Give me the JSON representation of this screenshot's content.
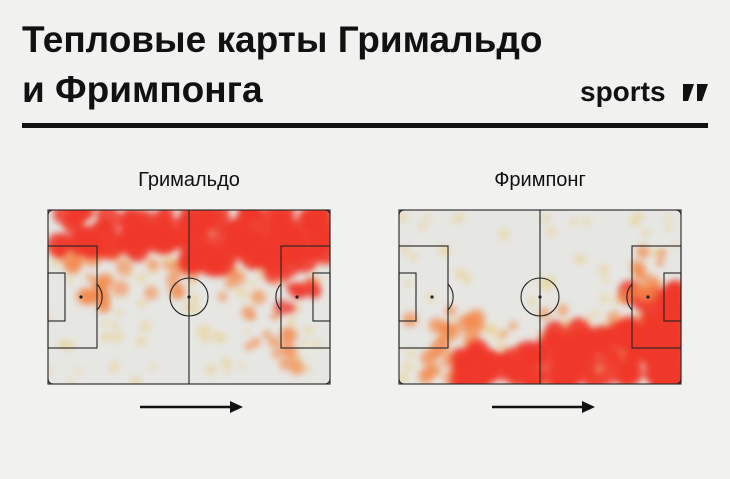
{
  "header": {
    "title_lines": [
      "Тепловые карты Гримальдо",
      "и Фримпонга"
    ],
    "brand": "sports"
  },
  "panels": [
    {
      "label": "Гримальдо"
    },
    {
      "label": "Фримпонг"
    }
  ]
}
